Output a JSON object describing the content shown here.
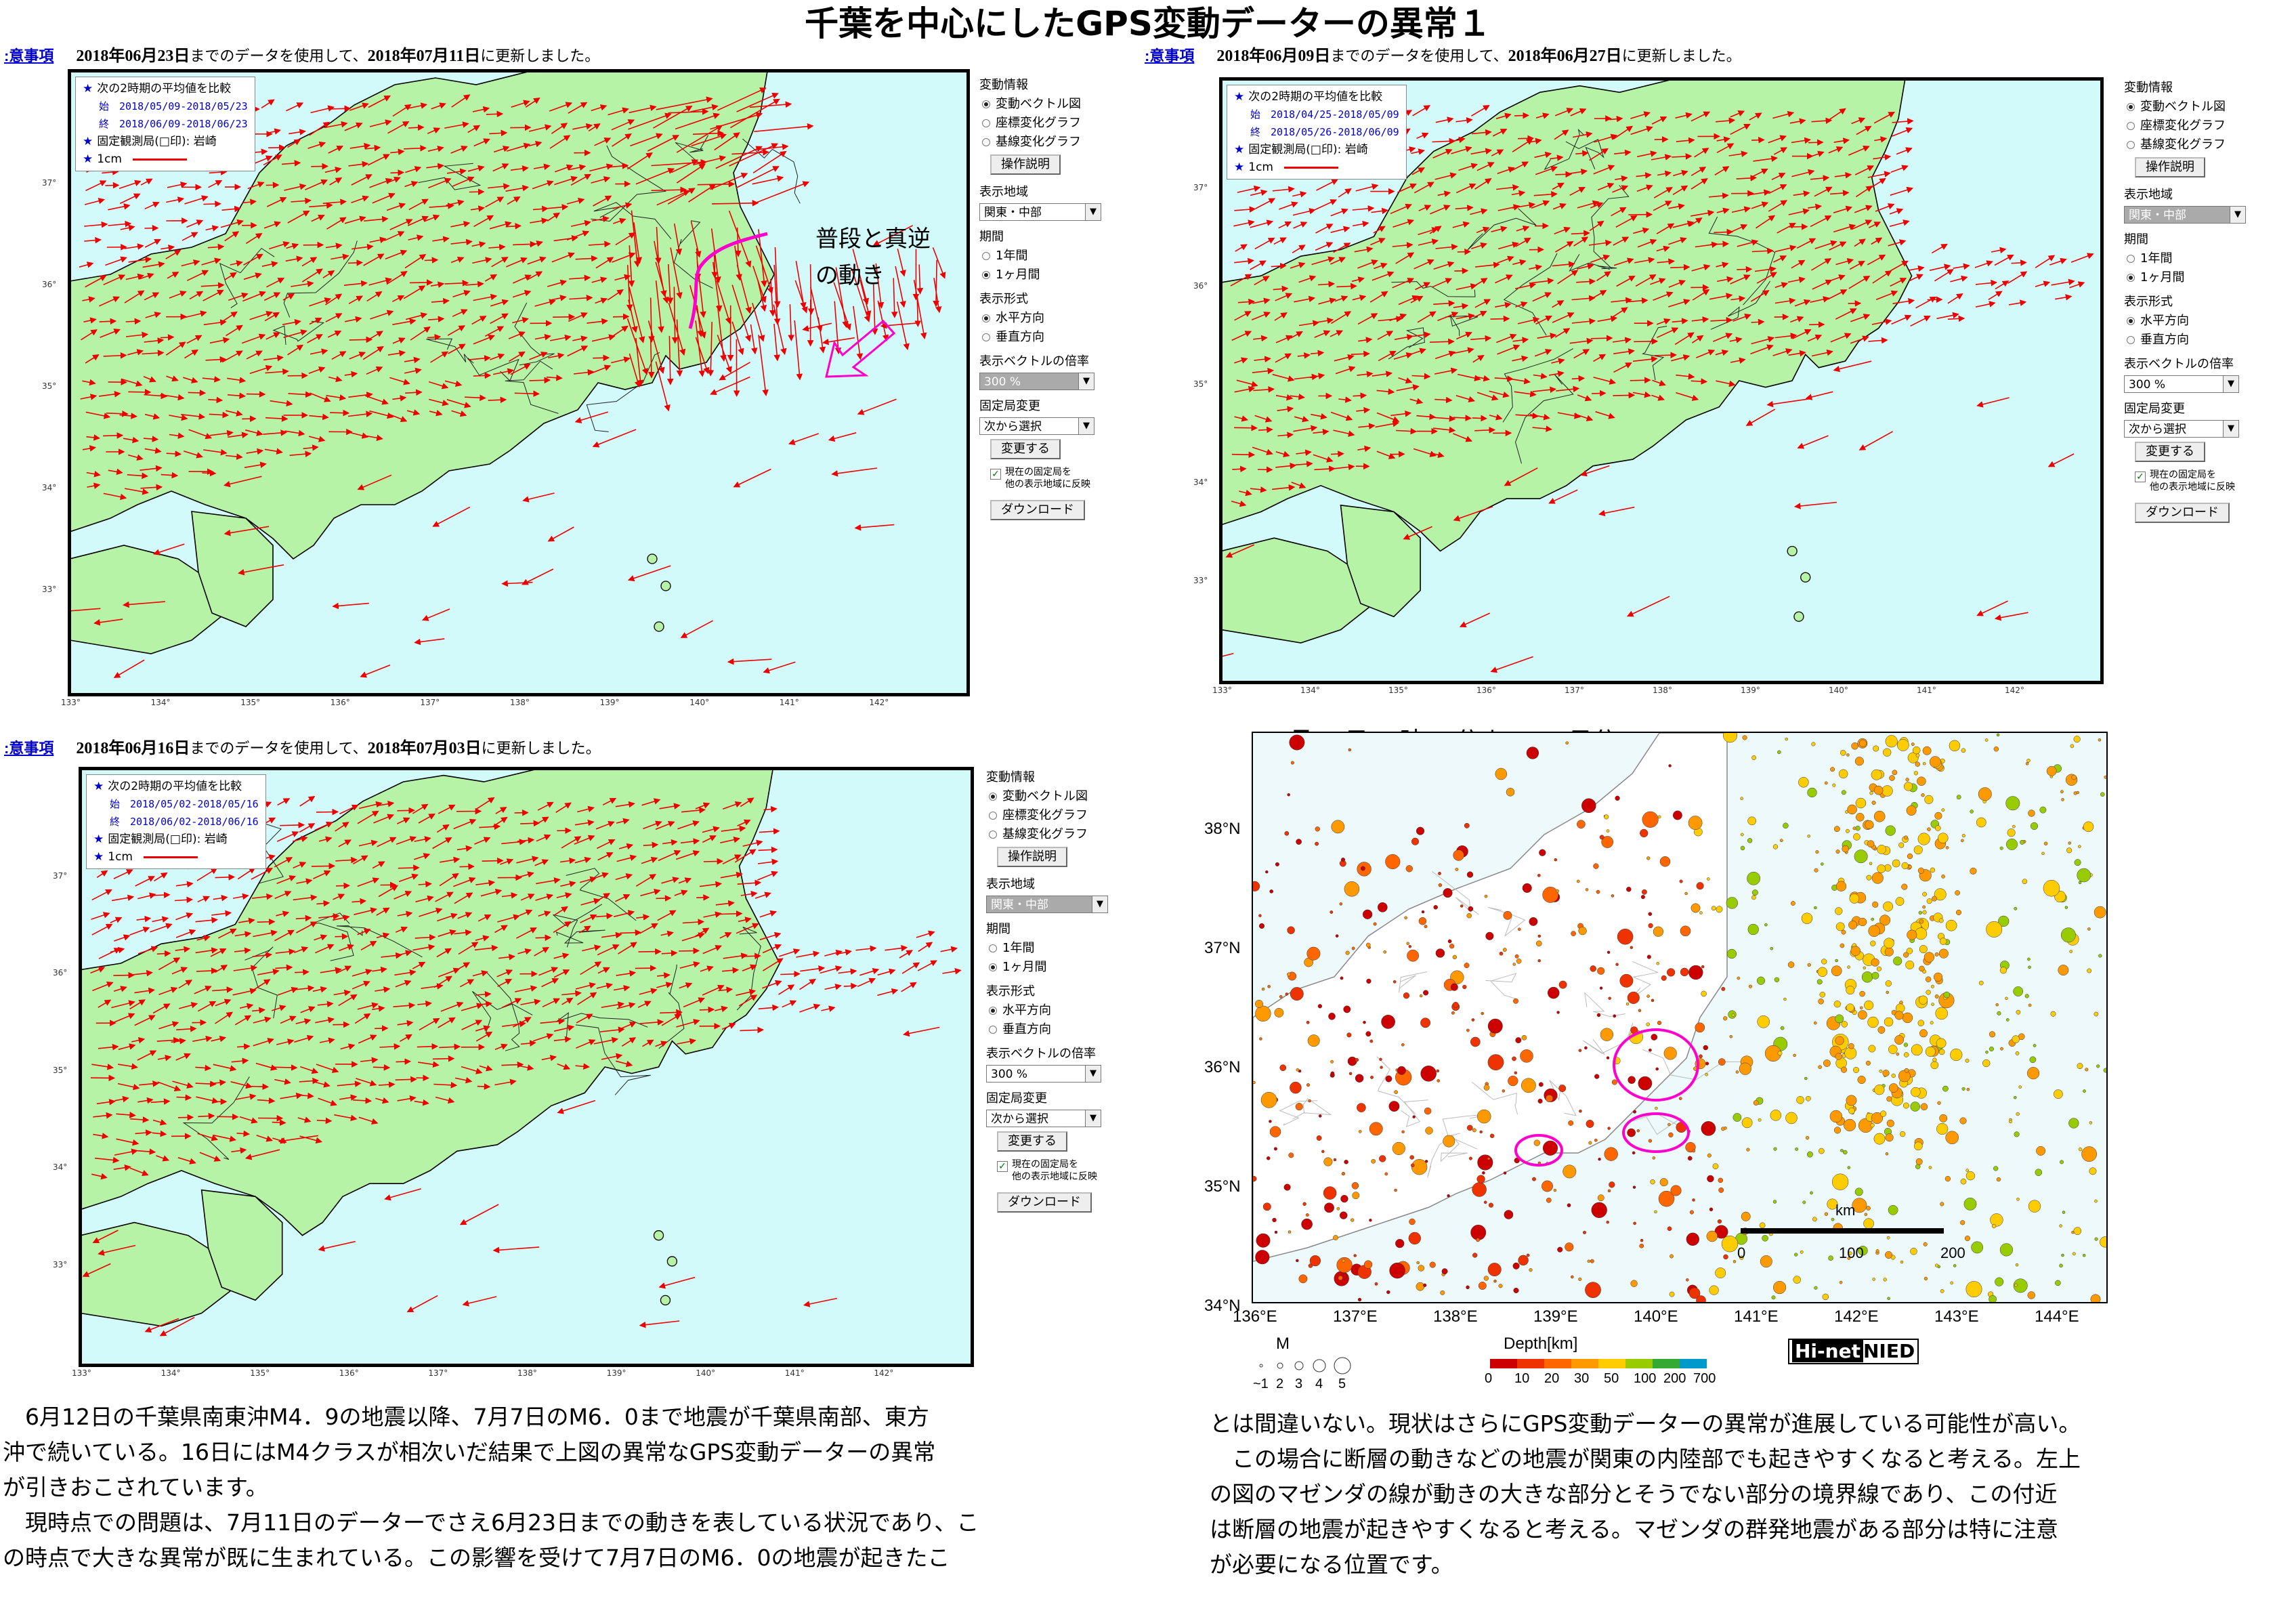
{
  "main_title": "千葉を中心にしたGPS変動データーの異常１",
  "panels": [
    {
      "notice_link": ":意事項",
      "header_date1": "2018年06月23日",
      "header_mid": "までのデータを使用して、",
      "header_date2": "2018年07月11日",
      "header_end": "に更新しました。",
      "legend_title": "次の2時期の平均値を比較",
      "legend_start": "始　2018/05/09-2018/05/23",
      "legend_end": "終　2018/06/09-2018/06/23",
      "legend_fixed": "固定観測局(□印): 岩崎",
      "legend_scale": "1cm",
      "map_lat_ticks": [
        "37°",
        "36°",
        "35°",
        "34°",
        "33°"
      ],
      "map_lon_ticks": [
        "133°",
        "134°",
        "135°",
        "136°",
        "137°",
        "138°",
        "139°",
        "140°",
        "141°",
        "142°"
      ],
      "annotation": [
        "普段と真逆",
        "の動き"
      ],
      "annotation_color": "#ff00cc"
    },
    {
      "notice_link": ":意事項",
      "header_date1": "2018年06月09日",
      "header_mid": "までのデータを使用して、",
      "header_date2": "2018年06月27日",
      "header_end": "に更新しました。",
      "legend_title": "次の2時期の平均値を比較",
      "legend_start": "始　2018/04/25-2018/05/09",
      "legend_end": "終　2018/05/26-2018/06/09",
      "legend_fixed": "固定観測局(□印): 岩崎",
      "legend_scale": "1cm",
      "map_lat_ticks": [
        "37°",
        "36°",
        "35°",
        "34°",
        "33°"
      ],
      "map_lon_ticks": [
        "133°",
        "134°",
        "135°",
        "136°",
        "137°",
        "138°",
        "139°",
        "140°",
        "141°",
        "142°"
      ]
    },
    {
      "notice_link": ":意事項",
      "header_date1": "2018年06月16日",
      "header_mid": "までのデータを使用して、",
      "header_date2": "2018年07月03日",
      "header_end": "に更新しました。",
      "legend_title": "次の2時期の平均値を比較",
      "legend_start": "始　2018/05/02-2018/05/16",
      "legend_end": "終　2018/06/02-2018/06/16",
      "legend_fixed": "固定観測局(□印): 岩崎",
      "legend_scale": "1cm",
      "map_lat_ticks": [
        "37°",
        "36°",
        "35°",
        "34°",
        "33°"
      ],
      "map_lon_ticks": [
        "133°",
        "134°",
        "135°",
        "136°",
        "137°",
        "138°",
        "139°",
        "140°",
        "141°",
        "142°"
      ]
    }
  ],
  "controls": {
    "change_info_label": "変動情報",
    "opt_vector": "変動ベクトル図",
    "opt_coord": "座標変化グラフ",
    "opt_baseline": "基線変化グラフ",
    "manual_button": "操作説明",
    "region_label": "表示地域",
    "region_value": "関東・中部",
    "period_label": "期間",
    "opt_1year": "1年間",
    "opt_1month": "1ヶ月間",
    "format_label": "表示形式",
    "opt_horizontal": "水平方向",
    "opt_vertical": "垂直方向",
    "scale_label": "表示ベクトルの倍率",
    "scale_value": "300 %",
    "fixed_label": "固定局変更",
    "fixed_value": "次から選択",
    "change_button": "変更する",
    "reflect_check_line1": "現在の固定局を",
    "reflect_check_line2": "他の表示地域に反映",
    "download_button": "ダウンロード"
  },
  "seismic": {
    "title": "7月11日14時45分までの7日分",
    "lat_labels": [
      "38°N",
      "37°N",
      "36°N",
      "35°N",
      "34°N"
    ],
    "lon_labels": [
      "136°E",
      "137°E",
      "138°E",
      "139°E",
      "140°E",
      "141°E",
      "142°E",
      "143°E",
      "144°E"
    ],
    "km_label": "km",
    "km_ticks": [
      "0",
      "100",
      "200"
    ],
    "mag_label": "M",
    "mag_ticks": [
      "~1",
      "2",
      "3",
      "4",
      "5"
    ],
    "depth_label": "Depth[km]",
    "depth_ticks": [
      "0",
      "10",
      "20",
      "30",
      "50",
      "100",
      "200",
      "700"
    ],
    "logo_hi": "Hi-net",
    "logo_nied": "NIED",
    "depth_colors": [
      "#cc0000",
      "#ee3300",
      "#ff6600",
      "#ff9900",
      "#ffcc00",
      "#99cc00",
      "#33aa33",
      "#0099cc"
    ]
  },
  "paragraph_left": [
    "　6月12日の千葉県南東沖M4．9の地震以降、7月7日のM6．0まで地震が千葉県南部、東方",
    "沖で続いている。16日にはM4クラスが相次いだ結果で上図の異常なGPS変動データーの異常",
    "が引きおこされています。",
    "　現時点での問題は、7月11日のデーターでさえ6月23日までの動きを表している状況であり、こ",
    "の時点で大きな異常が既に生まれている。この影響を受けて7月7日のM6．0の地震が起きたこ"
  ],
  "paragraph_right": [
    "とは間違いない。現状はさらにGPS変動データーの異常が進展している可能性が高い。",
    "　この場合に断層の動きなどの地震が関東の内陸部でも起きやすくなると考える。左上",
    "の図のマゼンダの線が動きの大きな部分とそうでない部分の境界線であり、この付近",
    "は断層の地震が起きやすくなると考える。マゼンダの群発地震がある部分は特に注意",
    "が必要になる位置です。"
  ]
}
